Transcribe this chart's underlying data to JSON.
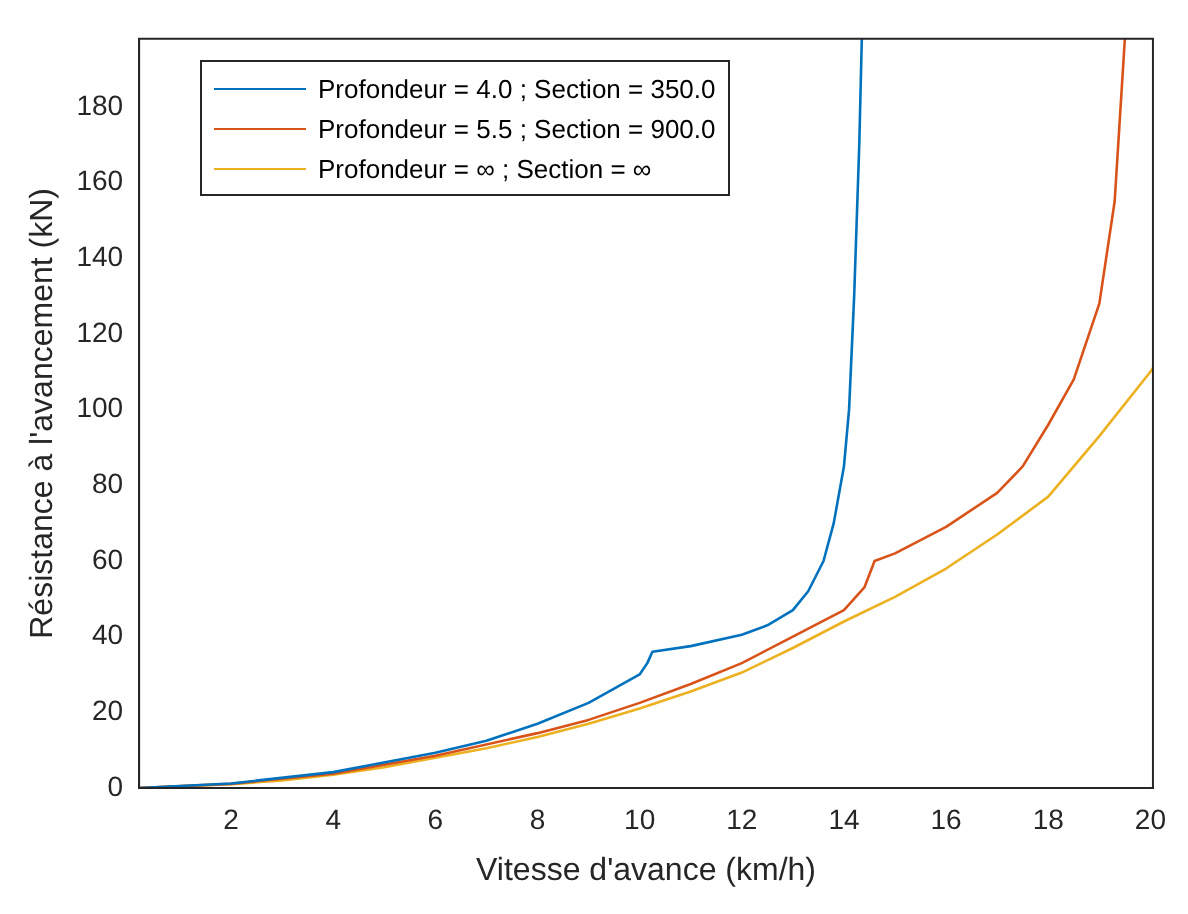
{
  "chart_data": {
    "type": "line",
    "xlabel": "Vitesse d'avance (km/h)",
    "ylabel": "Résistance à l'avancement (kN)",
    "xlim": [
      0.2,
      20.05
    ],
    "ylim": [
      0,
      198
    ],
    "xticks": [
      2,
      4,
      6,
      8,
      10,
      12,
      14,
      16,
      18,
      20
    ],
    "yticks": [
      0,
      20,
      40,
      60,
      80,
      100,
      120,
      140,
      160,
      180
    ],
    "grid": false,
    "legend": "top left",
    "marker": "none",
    "line_style": "solid",
    "series": [
      {
        "name": "Profondeur = 4.0 ; Section = 350.0",
        "color": "#0072bd",
        "x": [
          0.2,
          2,
          4,
          6,
          7,
          8,
          9,
          10,
          10.15,
          10.25,
          11,
          12,
          12.5,
          13,
          13.3,
          13.6,
          13.8,
          14,
          14.1,
          14.2,
          14.3,
          14.35
        ],
        "values": [
          0,
          1.2,
          4.2,
          9.3,
          12.5,
          17,
          22.5,
          30,
          33,
          36,
          37.5,
          40.5,
          43,
          47,
          52,
          60,
          70,
          85,
          100,
          130,
          170,
          198
        ]
      },
      {
        "name": "Profondeur = 5.5 ; Section = 900.0",
        "color": "#d95319",
        "x": [
          0.2,
          2,
          4,
          6,
          8,
          9,
          10,
          11,
          12,
          13,
          14,
          14.4,
          14.6,
          15,
          16,
          17,
          17.5,
          18,
          18.5,
          19,
          19.3,
          19.5
        ],
        "values": [
          0,
          1.1,
          3.8,
          8.5,
          14.5,
          18,
          22.5,
          27.5,
          33,
          40,
          47,
          53,
          60,
          62,
          69,
          78,
          85,
          96,
          108,
          128,
          155,
          198
        ]
      },
      {
        "name": "Profondeur = ∞ ; Section = ∞",
        "color": "#edb120",
        "x": [
          0.2,
          2,
          3,
          4,
          5,
          6,
          7,
          8,
          9,
          10,
          11,
          12,
          13,
          14,
          15,
          16,
          17,
          18,
          19,
          20,
          20.05
        ],
        "values": [
          0,
          1,
          2,
          3.5,
          5.5,
          8,
          10.5,
          13.5,
          17,
          21,
          25.5,
          30.5,
          37,
          44,
          50.5,
          58,
          67,
          77,
          93,
          110,
          111
        ]
      }
    ]
  }
}
